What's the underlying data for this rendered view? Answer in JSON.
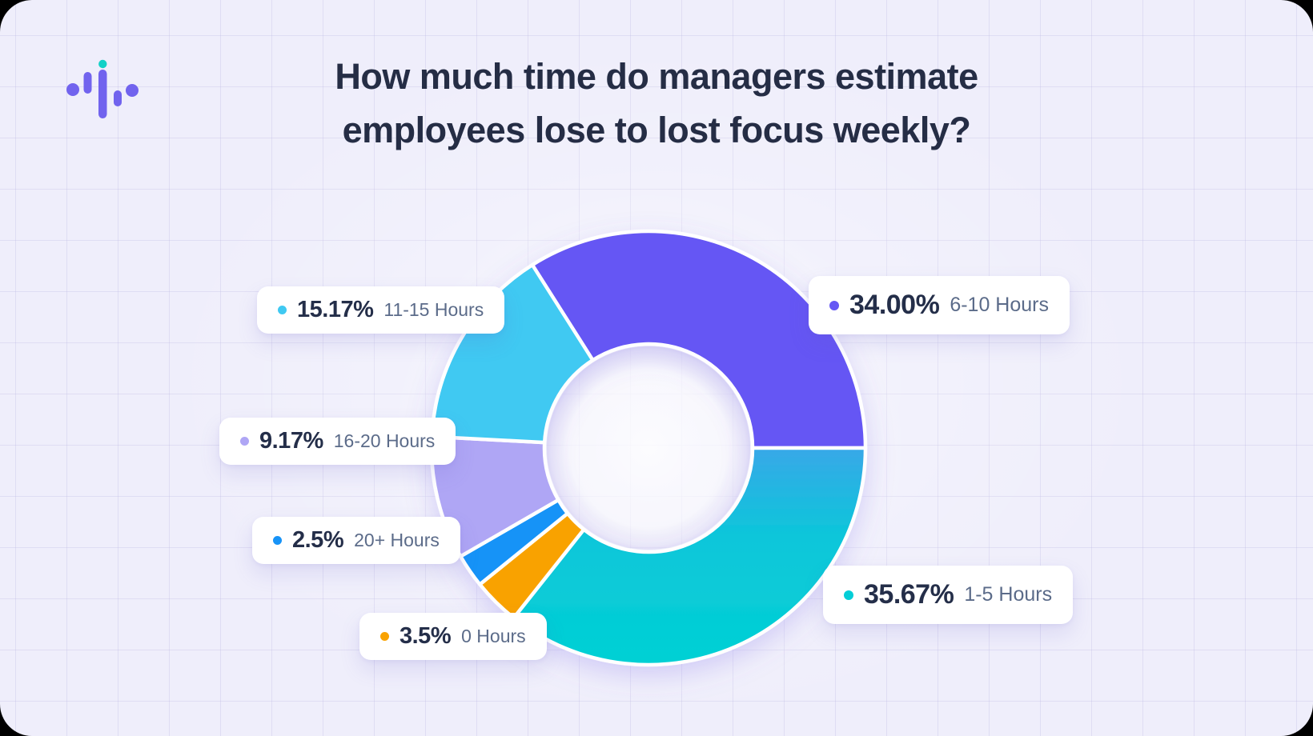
{
  "title": "How much time do managers estimate employees lose to lost focus weekly?",
  "logo": {
    "name": "pulse-waveform-logo",
    "bar_color": "#7163EE",
    "accent_dot_color": "#12D1C7"
  },
  "chart_data": {
    "type": "pie",
    "style": "donut",
    "title": "How much time do managers estimate employees lose to lost focus weekly?",
    "start_angle_deg_from_north": -32.4,
    "legend_position": "floating-cards",
    "segments": [
      {
        "key": "610",
        "label": "6-10 Hours",
        "display": "34.00%",
        "value": 34.0,
        "color": "#6557F4"
      },
      {
        "key": "15",
        "label": "1-5 Hours",
        "display": "35.67%",
        "value": 35.67,
        "color": "#04CED7",
        "gradient": [
          "#38A8E8",
          "#0CC6DA",
          "#02D1D4"
        ]
      },
      {
        "key": "0",
        "label": "0 Hours",
        "display": "3.5%",
        "value": 3.5,
        "color": "#F9A201"
      },
      {
        "key": "20",
        "label": "20+ Hours",
        "display": "2.5%",
        "value": 2.5,
        "color": "#1793F7"
      },
      {
        "key": "1620",
        "label": "16-20 Hours",
        "display": "9.17%",
        "value": 9.17,
        "color": "#AFA6F5"
      },
      {
        "key": "1115",
        "label": "11-15 Hours",
        "display": "15.17%",
        "value": 15.17,
        "color": "#3FC9F2"
      }
    ]
  }
}
